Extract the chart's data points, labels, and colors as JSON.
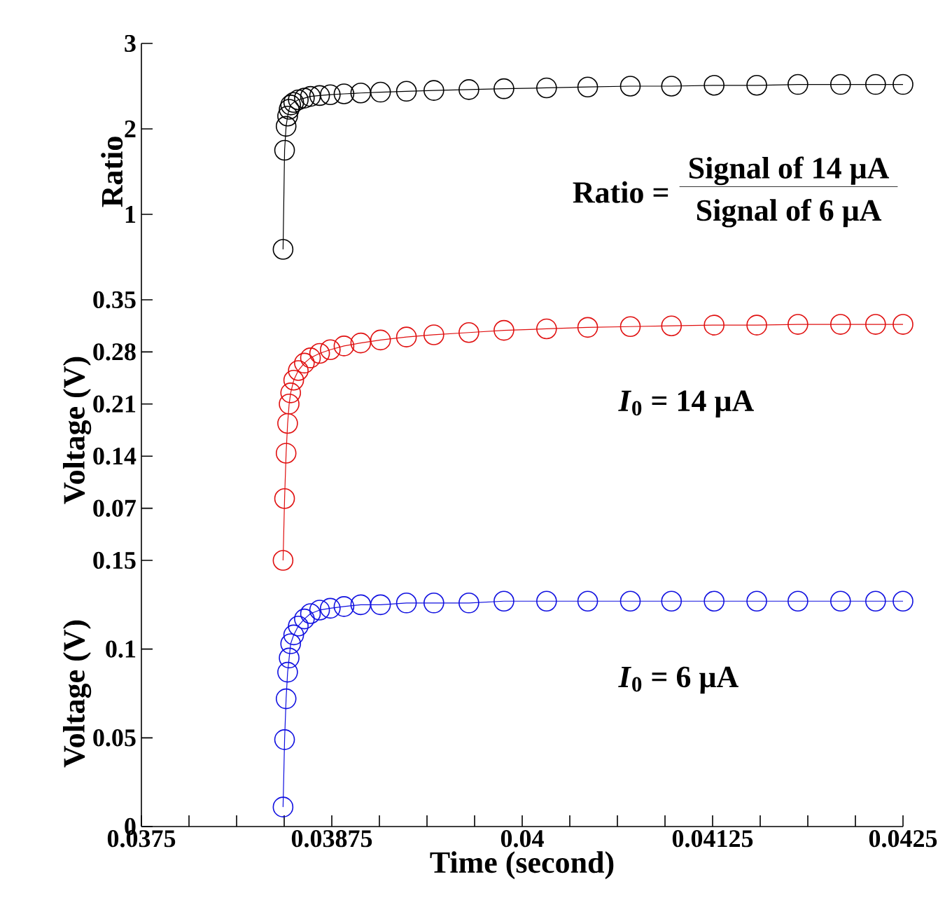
{
  "chart_data": [
    {
      "type": "line",
      "ylabel": "Ratio",
      "marker": "circle",
      "line_style": "solid",
      "tick_labels": "y",
      "annotations": [
        "Ratio =",
        "Signal of 14 μA",
        "Signal of 6 μA"
      ],
      "x": [
        0.03843,
        0.03844,
        0.03845,
        0.03846,
        0.03847,
        0.03848,
        0.0385,
        0.03853,
        0.03857,
        0.03861,
        0.03867,
        0.03874,
        0.03883,
        0.03894,
        0.03907,
        0.03924,
        0.03942,
        0.03965,
        0.03988,
        0.04016,
        0.04043,
        0.04071,
        0.04098,
        0.04126,
        0.04154,
        0.04181,
        0.04209,
        0.04232,
        0.0425
      ],
      "series": [
        {
          "color": "#000000",
          "values": [
            0.59,
            1.75,
            2.03,
            2.15,
            2.23,
            2.28,
            2.31,
            2.34,
            2.36,
            2.38,
            2.39,
            2.4,
            2.41,
            2.42,
            2.43,
            2.44,
            2.45,
            2.46,
            2.47,
            2.48,
            2.49,
            2.5,
            2.5,
            2.51,
            2.51,
            2.52,
            2.52,
            2.52,
            2.52
          ]
        }
      ],
      "xlim": [
        0.0375,
        0.0425
      ],
      "ylim": [
        0,
        3
      ],
      "yticks": [
        1,
        2,
        3
      ]
    },
    {
      "type": "line",
      "ylabel": "Voltage (V)",
      "marker": "circle",
      "line_style": "solid",
      "tick_labels": "y",
      "annotations": [
        "*I*$_{0}$ = 14 μA"
      ],
      "x": [
        0.03843,
        0.03844,
        0.03845,
        0.03846,
        0.03847,
        0.03848,
        0.0385,
        0.03853,
        0.03857,
        0.03861,
        0.03867,
        0.03874,
        0.03883,
        0.03894,
        0.03907,
        0.03924,
        0.03942,
        0.03965,
        0.03988,
        0.04016,
        0.04043,
        0.04071,
        0.04098,
        0.04126,
        0.04154,
        0.04181,
        0.04209,
        0.04232,
        0.0425
      ],
      "series": [
        {
          "color": "#e01010",
          "values": [
            0.0,
            0.083,
            0.144,
            0.184,
            0.21,
            0.225,
            0.242,
            0.255,
            0.265,
            0.272,
            0.278,
            0.283,
            0.288,
            0.292,
            0.296,
            0.3,
            0.303,
            0.306,
            0.309,
            0.311,
            0.313,
            0.314,
            0.315,
            0.316,
            0.316,
            0.317,
            0.317,
            0.317,
            0.317
          ]
        }
      ],
      "xlim": [
        0.0375,
        0.0425
      ],
      "ylim": [
        0,
        0.35
      ],
      "yticks": [
        0.07,
        0.14,
        0.21,
        0.28,
        0.35
      ]
    },
    {
      "type": "line",
      "ylabel": "Voltage (V)",
      "xlabel": "Time (second)",
      "marker": "circle",
      "line_style": "solid",
      "annotations": [
        "*I*$_{0}$ = 6 μA"
      ],
      "x": [
        0.03843,
        0.03844,
        0.03845,
        0.03846,
        0.03847,
        0.03848,
        0.0385,
        0.03853,
        0.03857,
        0.03861,
        0.03867,
        0.03874,
        0.03883,
        0.03894,
        0.03907,
        0.03924,
        0.03942,
        0.03965,
        0.03988,
        0.04016,
        0.04043,
        0.04071,
        0.04098,
        0.04126,
        0.04154,
        0.04181,
        0.04209,
        0.04232,
        0.0425
      ],
      "series": [
        {
          "color": "#1010e0",
          "values": [
            0.011,
            0.049,
            0.072,
            0.087,
            0.095,
            0.103,
            0.108,
            0.113,
            0.117,
            0.12,
            0.122,
            0.123,
            0.124,
            0.125,
            0.125,
            0.126,
            0.126,
            0.126,
            0.127,
            0.127,
            0.127,
            0.127,
            0.127,
            0.127,
            0.127,
            0.127,
            0.127,
            0.127,
            0.127
          ]
        }
      ],
      "xlim": [
        0.0375,
        0.0425
      ],
      "ylim": [
        0,
        0.15
      ],
      "yticks": [
        0,
        0.05,
        0.1,
        0.15
      ],
      "xticks": [
        0.0375,
        {
          "value": 0.0378125,
          "label": null
        },
        {
          "value": 0.038125,
          "label": null
        },
        {
          "value": 0.0384375,
          "label": null
        },
        0.03875,
        {
          "value": 0.0390625,
          "label": null
        },
        {
          "value": 0.039375,
          "label": null
        },
        {
          "value": 0.0396875,
          "label": null
        },
        0.04,
        {
          "value": 0.0403125,
          "label": null
        },
        {
          "value": 0.040625,
          "label": null
        },
        {
          "value": 0.0409375,
          "label": null
        },
        0.04125,
        {
          "value": 0.0415625,
          "label": null
        },
        {
          "value": 0.041875,
          "label": null
        },
        {
          "value": 0.0421875,
          "label": null
        },
        0.0425
      ]
    }
  ]
}
